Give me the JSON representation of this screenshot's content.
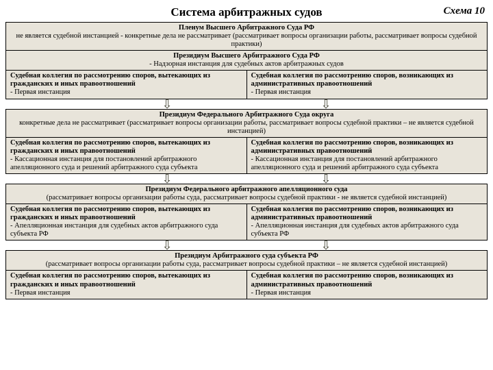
{
  "header": {
    "title": "Система арбитражных судов",
    "scheme_label": "Схема 10"
  },
  "colors": {
    "box_bg": "#e8e4da",
    "border": "#000000",
    "page_bg": "#ffffff"
  },
  "levels": [
    {
      "top": [
        {
          "bold": "Пленум Высшего Арбитражного Суда РФ",
          "plain": "не является судебной инстанцией - конкретные дела не рассматривает (рассматривает вопросы организации работы, рассматривает вопросы судебной практики)"
        },
        {
          "bold": "Президиум Высшего Арбитражного Суда РФ",
          "plain": "- Надзорная инстанция для судебных актов арбитражных судов"
        }
      ],
      "left": {
        "bold": "Судебная коллегия по рассмотрению споров, вытекающих из гражданских и иных правоотношений",
        "plain": " - Первая инстанция"
      },
      "right": {
        "bold": "Судебная коллегия по рассмотрению споров, возникающих из административных правоотношений",
        "plain": " - Первая инстанция"
      }
    },
    {
      "top": [
        {
          "bold": "Президиум Федерального Арбитражного Суда округа",
          "plain": "конкретные дела не рассматривает (рассматривает вопросы организации работы, рассматривает вопросы судебной практики – не является судебной инстанцией)"
        }
      ],
      "left": {
        "bold": "Судебная коллегия по рассмотрению споров, вытекающих из гражданских и иных правоотношений",
        "plain": "- Кассационная инстанция для постановлений арбитражного апелляционного суда и решений арбитражного суда субъекта"
      },
      "right": {
        "bold": "Судебная коллегия по рассмотрению споров, возникающих из административных правоотношений",
        "plain": "- Кассационная инстанция для постановлений арбитражного апелляционного суда и решений арбитражного суда субъекта"
      }
    },
    {
      "top": [
        {
          "bold": "Президиум Федерального арбитражного апелляционного суда",
          "plain": "(рассматривает вопросы организации работы суда, рассматривает вопросы судебной практики - не является судебной инстанцией)"
        }
      ],
      "left": {
        "bold": "Судебная коллегия по рассмотрению споров, вытекающих из гражданских и иных правоотношений",
        "plain": "- Апелляционная инстанция для судебных актов арбитражного суда субъекта РФ"
      },
      "right": {
        "bold": "Судебная коллегия по рассмотрению споров, возникающих из административных правоотношений",
        "plain": "- Апелляционная инстанция для судебных актов арбитражного суда субъекта РФ"
      }
    },
    {
      "top": [
        {
          "bold": "Президиум Арбитражного суда субъекта РФ",
          "plain": "(рассматривает вопросы организации работы суда, рассматривает вопросы судебной практики – не является судебной инстанцией)"
        }
      ],
      "left": {
        "bold": "Судебная коллегия по рассмотрению споров, вытекающих из гражданских и иных правоотношений",
        "plain": " - Первая инстанция"
      },
      "right": {
        "bold": "Судебная коллегия по рассмотрению споров, возникающих из административных правоотношений",
        "plain": "- Первая инстанция"
      }
    }
  ]
}
